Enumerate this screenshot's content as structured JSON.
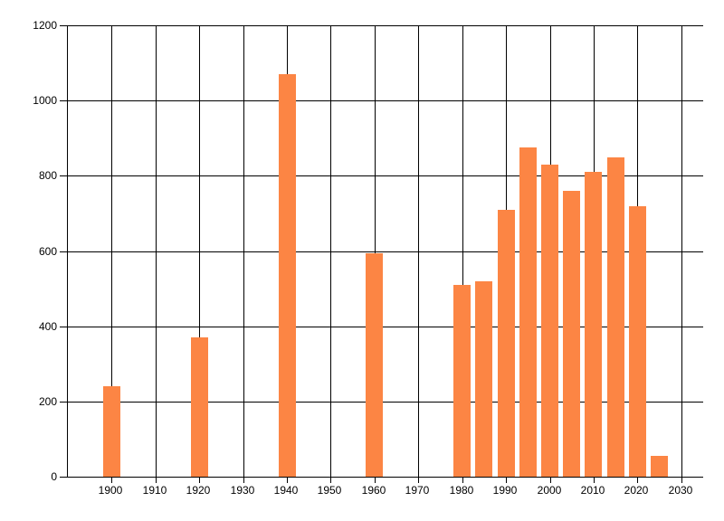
{
  "chart_data": {
    "type": "bar",
    "title": "",
    "xlabel": "",
    "ylabel": "",
    "x": [
      1900,
      1920,
      1940,
      1960,
      1980,
      1985,
      1990,
      1995,
      2000,
      2005,
      2010,
      2015,
      2020,
      2025
    ],
    "values": [
      240,
      370,
      1070,
      595,
      510,
      520,
      710,
      875,
      830,
      760,
      810,
      850,
      720,
      55
    ],
    "xlim": [
      1890,
      2035
    ],
    "ylim": [
      0,
      1200
    ],
    "x_tick_labels": [
      1900,
      1910,
      1920,
      1930,
      1940,
      1950,
      1960,
      1970,
      1980,
      1990,
      2000,
      2010,
      2020,
      2030
    ],
    "y_tick_labels": [
      0,
      200,
      400,
      600,
      800,
      1000,
      1200
    ],
    "grid": true,
    "legend": false,
    "bar_width_years": 4,
    "bar_color": "#fc8544",
    "grid_color": "#000000",
    "background_color": "#ffffff",
    "label_color": "#000000"
  }
}
